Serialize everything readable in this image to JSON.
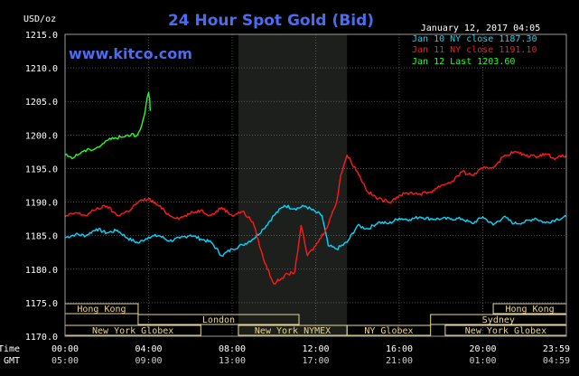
{
  "chart_data": {
    "type": "line",
    "title": "24 Hour Spot Gold (Bid)",
    "timestamp": "January 12, 2017 04:05",
    "watermark": "www.kitco.com",
    "ylabel": "USD/oz",
    "ylim": [
      1170,
      1215
    ],
    "yticks": [
      1170,
      1175,
      1180,
      1185,
      1190,
      1195,
      1200,
      1205,
      1210,
      1215
    ],
    "ytick_labels": [
      "1170.0",
      "1175.0",
      "1180.0",
      "1185.0",
      "1190.0",
      "1195.0",
      "1200.0",
      "1205.0",
      "1210.0",
      "1215.0"
    ],
    "xlim": [
      0,
      24
    ],
    "x_row_labels": [
      "NY Time",
      "GMT"
    ],
    "xticks": [
      0,
      4,
      8,
      12,
      16,
      20,
      24
    ],
    "xtick_labels_ny": [
      "00:00",
      "04:00",
      "08:00",
      "12:00",
      "16:00",
      "20:00",
      "23:59"
    ],
    "xtick_labels_gmt": [
      "05:00",
      "09:00",
      "13:00",
      "17:00",
      "21:00",
      "01:00",
      "04:59"
    ],
    "grid": true,
    "colors": {
      "background": "#000000",
      "grid": "#7a7a7a",
      "title": "#4a6cf0",
      "watermark": "#4a6cf0",
      "jan10": "#00d8ff",
      "jan11": "#ff1a1a",
      "jan12": "#22ff22",
      "session": "#e8d890",
      "text": "#ffffff",
      "nymex_shade": "#1c1f1c"
    },
    "nymex_shade": [
      8.3,
      13.5
    ],
    "legend": [
      {
        "label": "Jan 10 NY close 1187.30",
        "color": "#00d8ff"
      },
      {
        "label": "Jan 11 NY close 1191.10",
        "color": "#ff1a1a"
      },
      {
        "label": "Jan 12 Last 1203.60",
        "color": "#22ff22"
      }
    ],
    "sessions": [
      {
        "name": "Hong Kong",
        "row": 0,
        "start": 0,
        "end": 3.5
      },
      {
        "name": "London",
        "row": 1,
        "start": 3.5,
        "end": 11.2
      },
      {
        "name": "New York Globex",
        "row": 2,
        "start": 0,
        "end": 6.5
      },
      {
        "name": "New York NYMEX",
        "row": 2,
        "start": 8.3,
        "end": 13.5
      },
      {
        "name": "NY Globex",
        "row": 2,
        "start": 13.5,
        "end": 17.5
      },
      {
        "name": "Hong Kong",
        "row": 0,
        "start": 20.5,
        "end": 24
      },
      {
        "name": "Sydney",
        "row": 1,
        "start": 17.5,
        "end": 24
      },
      {
        "name": "New York Globex",
        "row": 2,
        "start": 18.2,
        "end": 24
      }
    ],
    "series": [
      {
        "name": "Jan 10 NY close 1187.30",
        "color": "#00d8ff",
        "points": [
          [
            0,
            1184.7
          ],
          [
            0.5,
            1185.2
          ],
          [
            1,
            1185.0
          ],
          [
            1.5,
            1186.0
          ],
          [
            2,
            1185.4
          ],
          [
            2.5,
            1185.8
          ],
          [
            3,
            1184.6
          ],
          [
            3.5,
            1183.9
          ],
          [
            4,
            1184.8
          ],
          [
            4.5,
            1185.0
          ],
          [
            5,
            1184.2
          ],
          [
            5.5,
            1184.6
          ],
          [
            6,
            1185.1
          ],
          [
            6.5,
            1184.5
          ],
          [
            7,
            1184.0
          ],
          [
            7.5,
            1182.0
          ],
          [
            8,
            1183.0
          ],
          [
            8.5,
            1183.6
          ],
          [
            9,
            1184.5
          ],
          [
            9.5,
            1186.0
          ],
          [
            10,
            1188.0
          ],
          [
            10.5,
            1189.5
          ],
          [
            11,
            1189.0
          ],
          [
            11.5,
            1189.4
          ],
          [
            12,
            1188.5
          ],
          [
            12.3,
            1188.0
          ],
          [
            12.6,
            1183.5
          ],
          [
            13,
            1183.0
          ],
          [
            13.5,
            1184.0
          ],
          [
            14,
            1186.5
          ],
          [
            14.5,
            1186.0
          ],
          [
            15,
            1187.0
          ],
          [
            15.5,
            1186.8
          ],
          [
            16,
            1187.6
          ],
          [
            16.5,
            1187.4
          ],
          [
            17,
            1187.8
          ],
          [
            17.5,
            1187.5
          ],
          [
            18,
            1187.5
          ],
          [
            18.5,
            1187.5
          ],
          [
            19,
            1187.5
          ],
          [
            19.5,
            1186.8
          ],
          [
            20,
            1187.8
          ],
          [
            20.5,
            1186.6
          ],
          [
            21,
            1187.8
          ],
          [
            21.5,
            1186.8
          ],
          [
            22,
            1187.0
          ],
          [
            22.5,
            1187.6
          ],
          [
            23,
            1186.9
          ],
          [
            23.5,
            1187.4
          ],
          [
            24,
            1187.8
          ]
        ]
      },
      {
        "name": "Jan 11 NY close 1191.10",
        "color": "#ff1a1a",
        "points": [
          [
            0,
            1187.8
          ],
          [
            0.5,
            1188.4
          ],
          [
            1,
            1188.0
          ],
          [
            1.5,
            1189.0
          ],
          [
            2,
            1189.4
          ],
          [
            2.5,
            1188.0
          ],
          [
            3,
            1188.6
          ],
          [
            3.5,
            1190.0
          ],
          [
            4,
            1190.5
          ],
          [
            4.5,
            1189.4
          ],
          [
            5,
            1188.0
          ],
          [
            5.5,
            1187.6
          ],
          [
            6,
            1188.3
          ],
          [
            6.5,
            1188.8
          ],
          [
            7,
            1188.0
          ],
          [
            7.5,
            1189.2
          ],
          [
            8,
            1188.0
          ],
          [
            8.5,
            1188.6
          ],
          [
            9,
            1187.0
          ],
          [
            9.5,
            1181.5
          ],
          [
            10,
            1177.8
          ],
          [
            10.5,
            1179.0
          ],
          [
            11,
            1179.6
          ],
          [
            11.3,
            1186.5
          ],
          [
            11.6,
            1182.0
          ],
          [
            12,
            1183.5
          ],
          [
            12.5,
            1186.0
          ],
          [
            13,
            1190.0
          ],
          [
            13.2,
            1194.0
          ],
          [
            13.5,
            1197.0
          ],
          [
            14,
            1194.5
          ],
          [
            14.5,
            1191.5
          ],
          [
            15,
            1190.5
          ],
          [
            15.5,
            1190.0
          ],
          [
            16,
            1191.0
          ],
          [
            16.5,
            1191.4
          ],
          [
            17,
            1191.2
          ],
          [
            17.5,
            1191.5
          ],
          [
            18,
            1192.5
          ],
          [
            18.5,
            1193.0
          ],
          [
            19,
            1194.5
          ],
          [
            19.5,
            1194.0
          ],
          [
            20,
            1195.0
          ],
          [
            20.5,
            1195.2
          ],
          [
            21,
            1196.8
          ],
          [
            21.5,
            1197.5
          ],
          [
            22,
            1197.0
          ],
          [
            22.5,
            1196.8
          ],
          [
            23,
            1197.2
          ],
          [
            23.5,
            1196.5
          ],
          [
            24,
            1197.0
          ]
        ]
      },
      {
        "name": "Jan 12 Last 1203.60",
        "color": "#22ff22",
        "points": [
          [
            0,
            1197.0
          ],
          [
            0.4,
            1196.6
          ],
          [
            0.8,
            1197.5
          ],
          [
            1.2,
            1197.8
          ],
          [
            1.6,
            1198.2
          ],
          [
            2,
            1199.2
          ],
          [
            2.4,
            1199.6
          ],
          [
            2.8,
            1199.7
          ],
          [
            3.2,
            1200.2
          ],
          [
            3.4,
            1199.8
          ],
          [
            3.6,
            1200.8
          ],
          [
            3.8,
            1203.0
          ],
          [
            3.9,
            1205.0
          ],
          [
            4.0,
            1206.3
          ],
          [
            4.05,
            1205.5
          ],
          [
            4.08,
            1203.6
          ]
        ]
      }
    ]
  }
}
